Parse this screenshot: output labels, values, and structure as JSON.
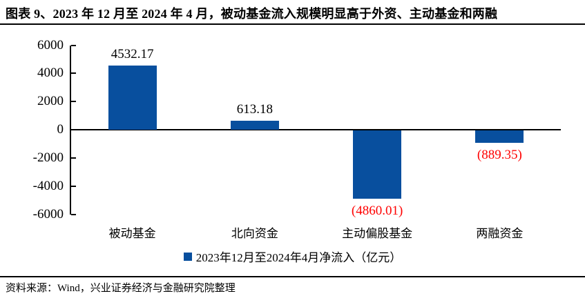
{
  "title": "图表 9、2023 年 12 月至 2024 年 4 月，被动基金流入规模明显高于外资、主动基金和两融",
  "source": "资料来源：Wind，兴业证券经济与金融研究院整理",
  "colors": {
    "bar": "#084F9E",
    "positive_label": "#000000",
    "negative_label": "#FF0000",
    "axis": "#000000"
  },
  "chart_data": {
    "type": "bar",
    "categories": [
      "被动基金",
      "北向资金",
      "主动偏股基金",
      "两融资金"
    ],
    "values": [
      4532.17,
      613.18,
      -4860.01,
      -889.35
    ],
    "value_labels": [
      "4532.17",
      "613.18",
      "(4860.01)",
      "(889.35)"
    ],
    "series_name": "2023年12月至2024年4月净流入（亿元）",
    "title": "",
    "xlabel": "",
    "ylabel": "",
    "ylim": [
      -6000,
      6000
    ],
    "yticks": [
      6000,
      4000,
      2000,
      0,
      -2000,
      -4000,
      -6000
    ],
    "grid": false,
    "legend_position": "bottom"
  }
}
